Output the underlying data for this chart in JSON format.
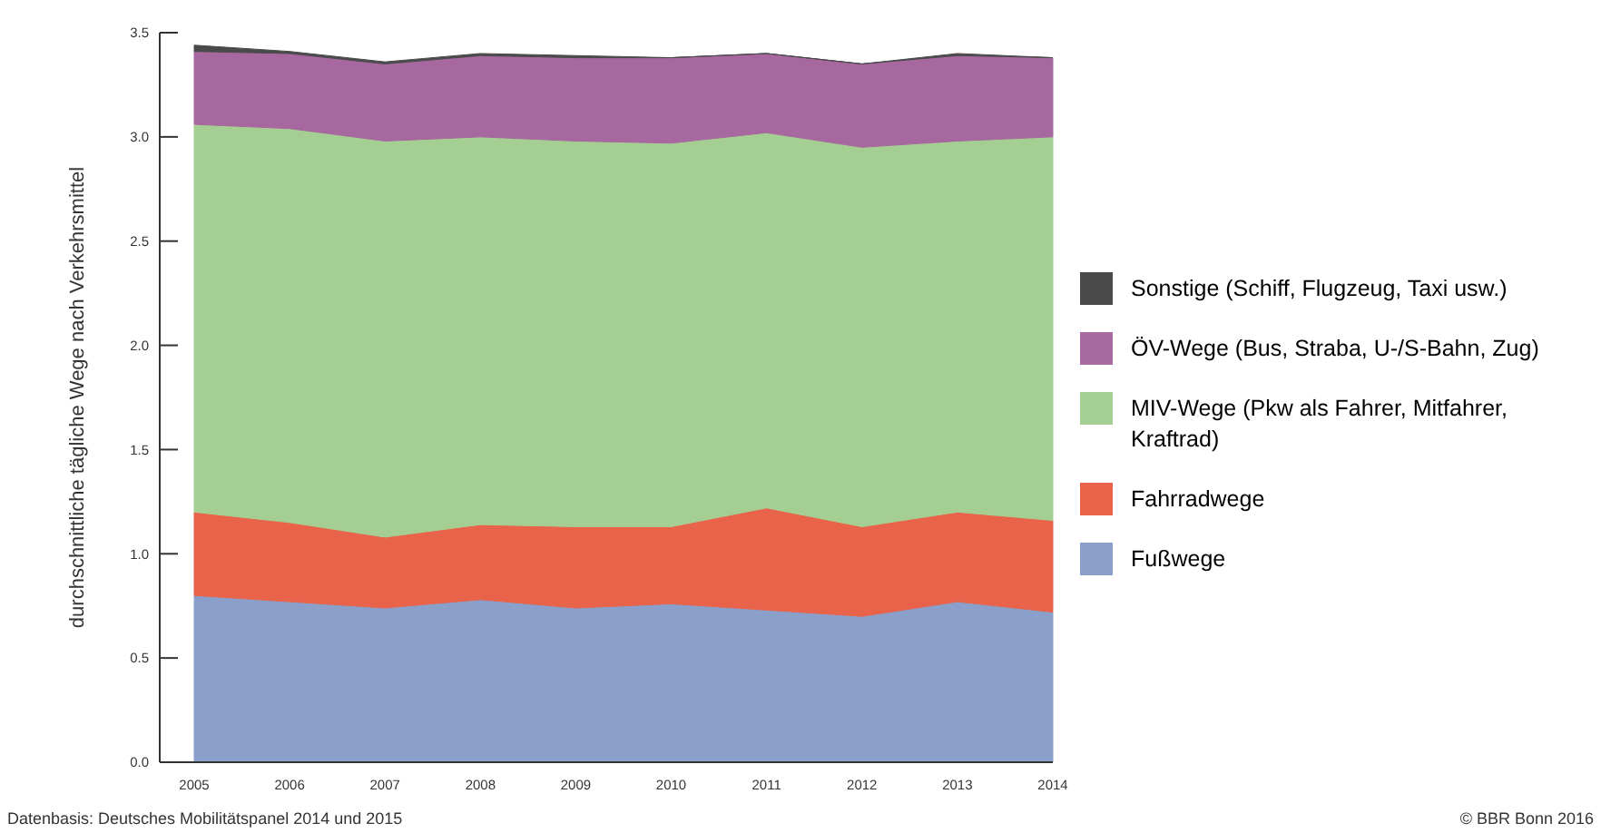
{
  "chart_data": {
    "type": "area",
    "stacked": true,
    "ylabel": "durchschnittliche tägliche Wege nach Verkehrsmittel",
    "categories": [
      "2005",
      "2006",
      "2007",
      "2008",
      "2009",
      "2010",
      "2011",
      "2012",
      "2013",
      "2014"
    ],
    "ylim": [
      0,
      3.5
    ],
    "yticks": [
      {
        "value": 0,
        "label": "0.0"
      },
      {
        "value": 0.5,
        "label": "0.5"
      },
      {
        "value": 1,
        "label": "1.0"
      },
      {
        "value": 1.5,
        "label": "1.5"
      },
      {
        "value": 2,
        "label": "2.0"
      },
      {
        "value": 2.5,
        "label": "2.5"
      },
      {
        "value": 3,
        "label": "3.0"
      },
      {
        "value": 3.5,
        "label": "3.5"
      }
    ],
    "series": [
      {
        "name": "Fußwege",
        "color": "#8a9fca",
        "values": [
          0.8,
          0.77,
          0.74,
          0.78,
          0.74,
          0.76,
          0.73,
          0.7,
          0.77,
          0.72
        ]
      },
      {
        "name": "Fahrradwege",
        "color": "#e8634a",
        "values": [
          0.4,
          0.38,
          0.34,
          0.36,
          0.39,
          0.37,
          0.49,
          0.43,
          0.43,
          0.44
        ]
      },
      {
        "name": "MIV-Wege (Pkw als Fahrer, Mitfahrer, Kraftrad)",
        "color": "#a5cf92",
        "values": [
          1.86,
          1.89,
          1.9,
          1.86,
          1.85,
          1.84,
          1.8,
          1.82,
          1.78,
          1.84
        ]
      },
      {
        "name": "ÖV-Wege (Bus, Straba, U-/S-Bahn, Zug)",
        "color": "#a7679f",
        "values": [
          0.35,
          0.36,
          0.37,
          0.39,
          0.4,
          0.41,
          0.38,
          0.4,
          0.41,
          0.38
        ]
      },
      {
        "name": "Sonstige (Schiff, Flugzeug, Taxi usw.)",
        "color": "#4a4a4a",
        "values": [
          0.03,
          0.01,
          0.01,
          0.01,
          0.01,
          0.0,
          0.0,
          0.0,
          0.01,
          0.0
        ]
      }
    ],
    "legend": "right",
    "grid": false,
    "annotations": [
      "Datenbasis: Deutsches Mobilitätspanel 2014 und 2015",
      "© BBR Bonn 2016"
    ]
  }
}
